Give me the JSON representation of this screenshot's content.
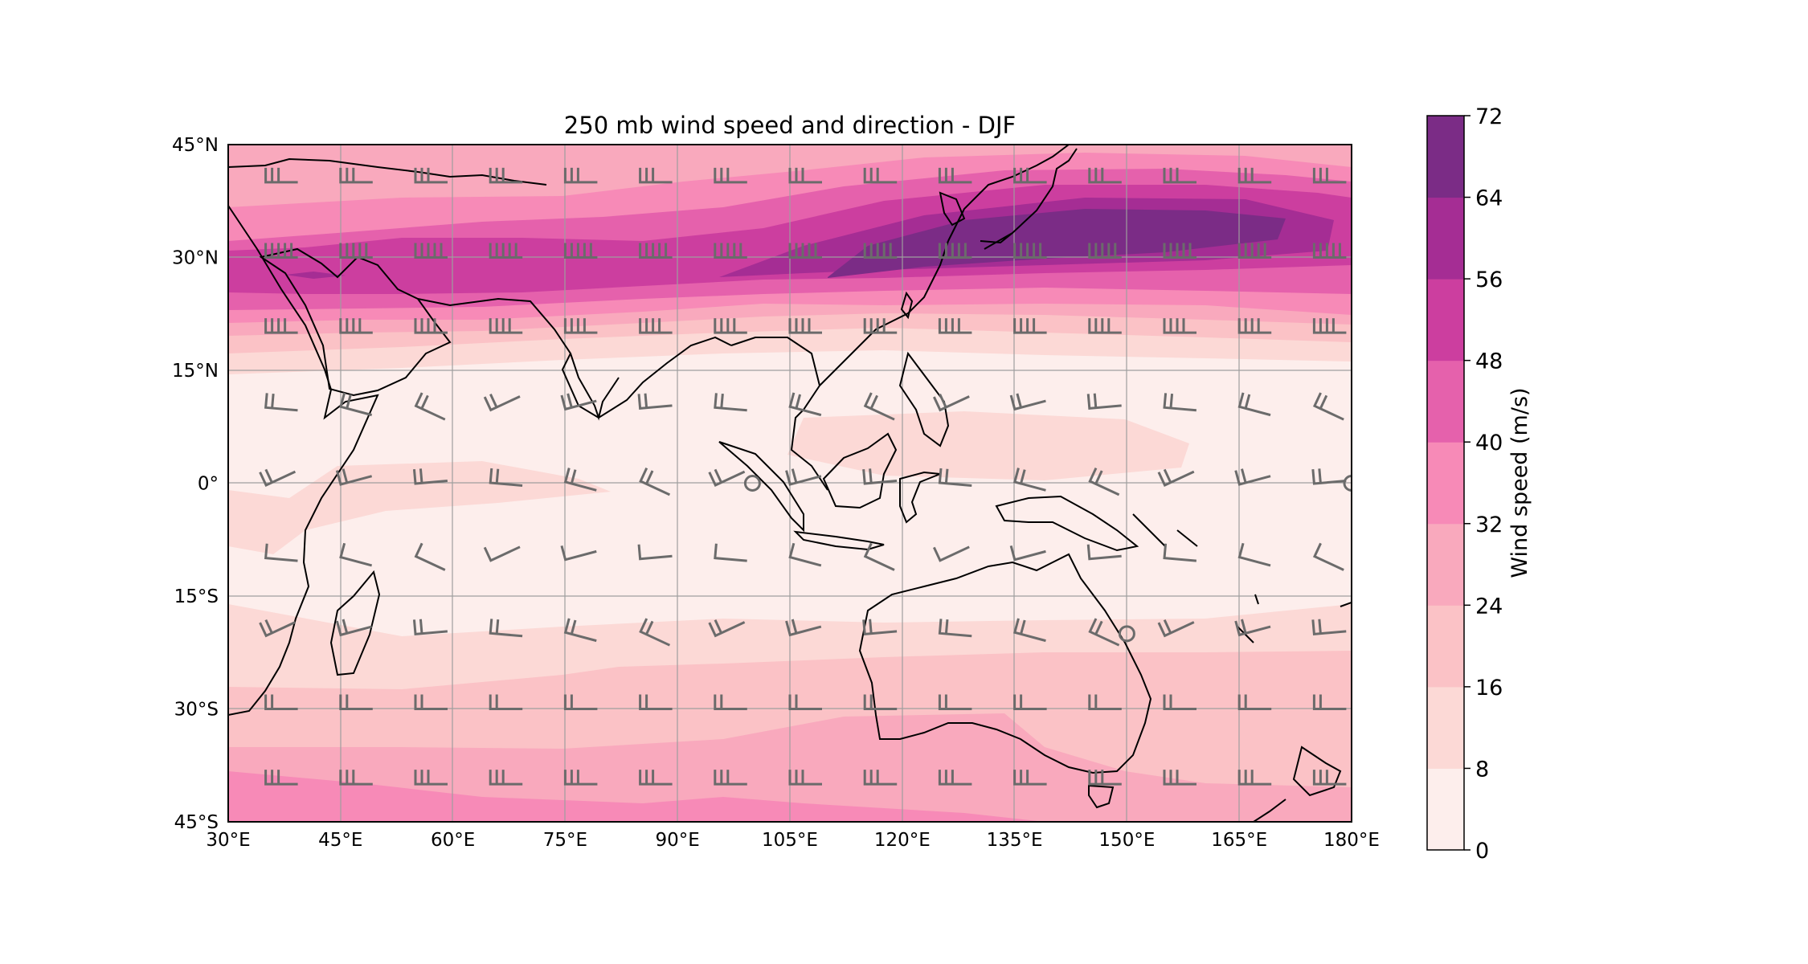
{
  "title": "250 mb wind speed and direction - DJF",
  "map": {
    "lon_range": [
      30,
      180
    ],
    "lat_range": [
      -45,
      45
    ],
    "x_ticks": [
      {
        "value": 30,
        "label": "30°E"
      },
      {
        "value": 45,
        "label": "45°E"
      },
      {
        "value": 60,
        "label": "60°E"
      },
      {
        "value": 75,
        "label": "75°E"
      },
      {
        "value": 90,
        "label": "90°E"
      },
      {
        "value": 105,
        "label": "105°E"
      },
      {
        "value": 120,
        "label": "120°E"
      },
      {
        "value": 135,
        "label": "135°E"
      },
      {
        "value": 150,
        "label": "150°E"
      },
      {
        "value": 165,
        "label": "165°E"
      },
      {
        "value": 180,
        "label": "180°E"
      }
    ],
    "y_ticks": [
      {
        "value": 45,
        "label": "45°N"
      },
      {
        "value": 30,
        "label": "30°N"
      },
      {
        "value": 15,
        "label": "15°N"
      },
      {
        "value": 0,
        "label": "0°"
      },
      {
        "value": -15,
        "label": "15°S"
      },
      {
        "value": -30,
        "label": "30°S"
      },
      {
        "value": -45,
        "label": "45°S"
      }
    ],
    "gridlines": true,
    "barb_color": "#6b6b6b",
    "coastline_color": "#000000"
  },
  "colorbar": {
    "label": "Wind speed (m/s)",
    "levels": [
      0,
      8,
      16,
      24,
      32,
      40,
      48,
      56,
      64,
      72
    ],
    "level_labels": [
      "0",
      "8",
      "16",
      "24",
      "32",
      "40",
      "48",
      "56",
      "64",
      "72"
    ],
    "colors": [
      "#fdeeec",
      "#fcd9d6",
      "#fbc2c6",
      "#f9a9bd",
      "#f78ab7",
      "#e561ac",
      "#cc3e9f",
      "#a52d94",
      "#7b2c86"
    ]
  },
  "chart_data": {
    "type": "heatmap",
    "title": "250 mb wind speed and direction - DJF",
    "xlabel": "",
    "ylabel": "",
    "xlim": [
      30,
      180
    ],
    "ylim": [
      -45,
      45
    ],
    "colorbar_label": "Wind speed (m/s)",
    "levels": [
      0,
      8,
      16,
      24,
      32,
      40,
      48,
      56,
      64,
      72
    ],
    "jet_maximum": {
      "lon": 145,
      "lat": 33,
      "speed_range": [
        64,
        72
      ]
    },
    "zonal_speed_profile": [
      {
        "lat": 42,
        "speed": 28
      },
      {
        "lat": 36,
        "speed": 44
      },
      {
        "lat": 32,
        "speed": 52
      },
      {
        "lat": 27,
        "speed": 50
      },
      {
        "lat": 21,
        "speed": 30
      },
      {
        "lat": 15,
        "speed": 14
      },
      {
        "lat": 7,
        "speed": 8
      },
      {
        "lat": 0,
        "speed": 6
      },
      {
        "lat": -8,
        "speed": 5
      },
      {
        "lat": -15,
        "speed": 6
      },
      {
        "lat": -22,
        "speed": 10
      },
      {
        "lat": -30,
        "speed": 16
      },
      {
        "lat": -38,
        "speed": 22
      },
      {
        "lat": -44,
        "speed": 30
      }
    ]
  }
}
